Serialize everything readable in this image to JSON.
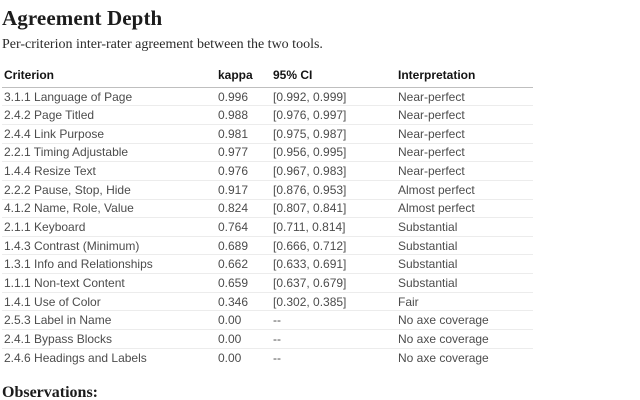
{
  "page": {
    "title": "Agreement Depth",
    "subtitle": "Per-criterion inter-rater agreement between the two tools.",
    "observations_heading": "Observations:"
  },
  "table": {
    "columns": [
      "Criterion",
      "kappa",
      "95% CI",
      "Interpretation"
    ],
    "rows": [
      {
        "criterion": "3.1.1 Language of Page",
        "kappa": "0.996",
        "ci": "[0.992, 0.999]",
        "interpretation": "Near-perfect"
      },
      {
        "criterion": "2.4.2 Page Titled",
        "kappa": "0.988",
        "ci": "[0.976, 0.997]",
        "interpretation": "Near-perfect"
      },
      {
        "criterion": "2.4.4 Link Purpose",
        "kappa": "0.981",
        "ci": "[0.975, 0.987]",
        "interpretation": "Near-perfect"
      },
      {
        "criterion": "2.2.1 Timing Adjustable",
        "kappa": "0.977",
        "ci": "[0.956, 0.995]",
        "interpretation": "Near-perfect"
      },
      {
        "criterion": "1.4.4 Resize Text",
        "kappa": "0.976",
        "ci": "[0.967, 0.983]",
        "interpretation": "Near-perfect"
      },
      {
        "criterion": "2.2.2 Pause, Stop, Hide",
        "kappa": "0.917",
        "ci": "[0.876, 0.953]",
        "interpretation": "Almost perfect"
      },
      {
        "criterion": "4.1.2 Name, Role, Value",
        "kappa": "0.824",
        "ci": "[0.807, 0.841]",
        "interpretation": "Almost perfect"
      },
      {
        "criterion": "2.1.1 Keyboard",
        "kappa": "0.764",
        "ci": "[0.711, 0.814]",
        "interpretation": "Substantial"
      },
      {
        "criterion": "1.4.3 Contrast (Minimum)",
        "kappa": "0.689",
        "ci": "[0.666, 0.712]",
        "interpretation": "Substantial"
      },
      {
        "criterion": "1.3.1 Info and Relationships",
        "kappa": "0.662",
        "ci": "[0.633, 0.691]",
        "interpretation": "Substantial"
      },
      {
        "criterion": "1.1.1 Non-text Content",
        "kappa": "0.659",
        "ci": "[0.637, 0.679]",
        "interpretation": "Substantial"
      },
      {
        "criterion": "1.4.1 Use of Color",
        "kappa": "0.346",
        "ci": "[0.302, 0.385]",
        "interpretation": "Fair"
      },
      {
        "criterion": "2.5.3 Label in Name",
        "kappa": "0.00",
        "ci": "--",
        "interpretation": "No axe coverage"
      },
      {
        "criterion": "2.4.1 Bypass Blocks",
        "kappa": "0.00",
        "ci": "--",
        "interpretation": "No axe coverage"
      },
      {
        "criterion": "2.4.6 Headings and Labels",
        "kappa": "0.00",
        "ci": "--",
        "interpretation": "No axe coverage"
      }
    ]
  },
  "colors": {
    "title_text": "#1c1c1c",
    "header_text": "#141414",
    "row_text": "#4c4c4c",
    "header_rule": "#bfbfbf",
    "row_rule": "#ececec",
    "background": "#ffffff"
  }
}
